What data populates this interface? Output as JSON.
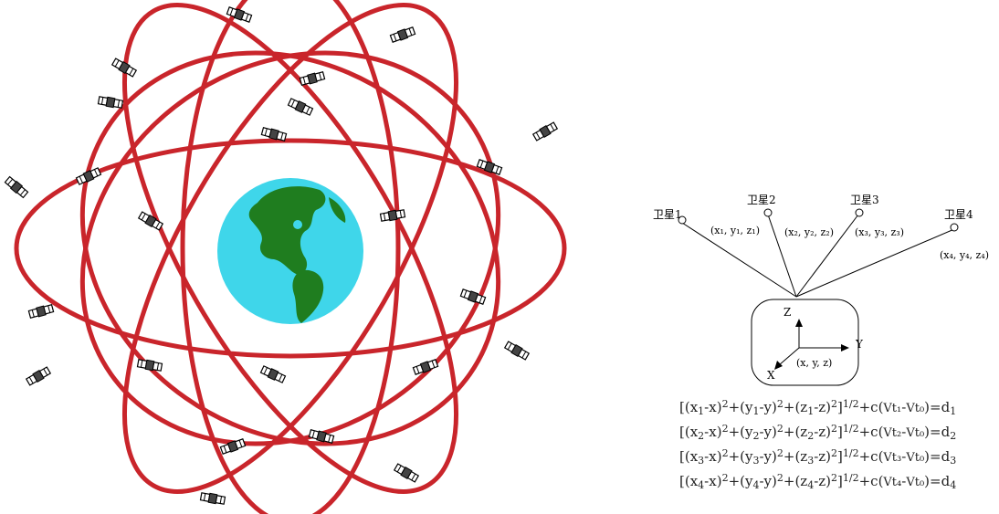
{
  "satellites": [
    {
      "label": "卫星1",
      "coords": "(x₁, y₁, z₁)"
    },
    {
      "label": "卫星2",
      "coords": "(x₂, y₂, z₂)"
    },
    {
      "label": "卫星3",
      "coords": "(x₃, y₃, z₃)"
    },
    {
      "label": "卫星4",
      "coords": "(x₄, y₄, z₄)"
    }
  ],
  "receiver": {
    "axis_z": "Z",
    "axis_y": "Y",
    "axis_x": "X",
    "coords": "(x, y, z)"
  },
  "equations": [
    {
      "a": "[(x",
      "sa": "1",
      "b": "-x)",
      "p1": "2",
      "c": "+(y",
      "sc": "1",
      "d": "-y)",
      "p2": "2",
      "e": "+(z",
      "se": "1",
      "f": "-z)",
      "p3": "2",
      "g": "]",
      "p4": "1/2",
      "h": "+c(",
      "t1": "Vt₁",
      "mid": "-",
      "t0": "Vt₀",
      "i": ")=d",
      "si": "1"
    },
    {
      "a": "[(x",
      "sa": "2",
      "b": "-x)",
      "p1": "2",
      "c": "+(y",
      "sc": "2",
      "d": "-y)",
      "p2": "2",
      "e": "+(z",
      "se": "2",
      "f": "-z)",
      "p3": "2",
      "g": "]",
      "p4": "1/2",
      "h": "+c(",
      "t1": "Vt₂",
      "mid": "-",
      "t0": "Vt₀",
      "i": ")=d",
      "si": "2"
    },
    {
      "a": "[(x",
      "sa": "3",
      "b": "-x)",
      "p1": "2",
      "c": "+(y",
      "sc": "3",
      "d": "-y)",
      "p2": "2",
      "e": "+(z",
      "se": "3",
      "f": "-z)",
      "p3": "2",
      "g": "]",
      "p4": "1/2",
      "h": "+c(",
      "t1": "Vt₃",
      "mid": "-",
      "t0": "Vt₀",
      "i": ")=d",
      "si": "3"
    },
    {
      "a": "[(x",
      "sa": "4",
      "b": "-x)",
      "p1": "2",
      "c": "+(y",
      "sc": "4",
      "d": "-y)",
      "p2": "2",
      "e": "+(z",
      "se": "4",
      "f": "-z)",
      "p3": "2",
      "g": "]",
      "p4": "1/2",
      "h": "+c(",
      "t1": "Vt₄",
      "mid": "-",
      "t0": "Vt₀",
      "i": ")=d",
      "si": "4"
    }
  ],
  "colors": {
    "orbit": "#c9252b",
    "ocean": "#3fd6ea",
    "land": "#1f7d1f",
    "ink": "#000000"
  }
}
